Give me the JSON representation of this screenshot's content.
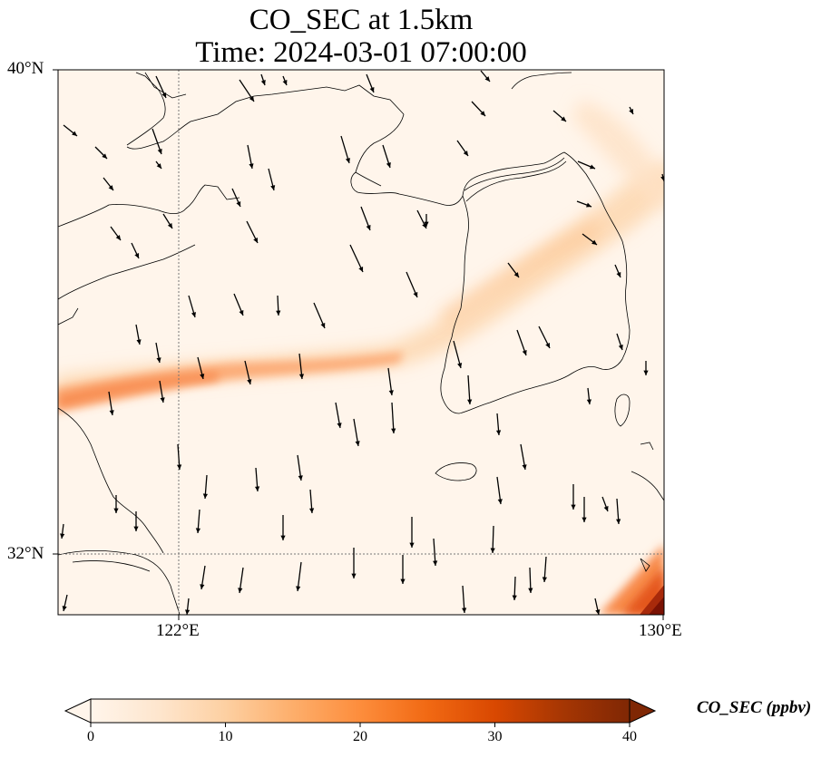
{
  "title": {
    "line1": "CO_SEC at 1.5km",
    "line2": "Time: 2024-03-01 07:00:00"
  },
  "map": {
    "extent": {
      "lon_min": 120,
      "lon_max": 130,
      "lat_min": 31,
      "lat_max": 40
    },
    "lat_ticks": [
      {
        "value": 40,
        "label": "40°N"
      },
      {
        "value": 32,
        "label": "32°N"
      }
    ],
    "lon_ticks": [
      {
        "value": 122,
        "label": "122°E"
      },
      {
        "value": 130,
        "label": "130°E"
      }
    ],
    "gridlines": [
      {
        "type": "lon",
        "value": 122
      },
      {
        "type": "lat",
        "value": 32
      }
    ],
    "plume_color_max": "#d94a1a",
    "coastline_color": "#000000"
  },
  "colorbar": {
    "label": "CO_SEC (ppbv)",
    "min": 0,
    "max": 40,
    "ticks": [
      "0",
      "10",
      "20",
      "30",
      "40"
    ],
    "colormap": [
      "#fff5eb",
      "#fee6ce",
      "#fdd0a2",
      "#fdae6b",
      "#fd8d3c",
      "#f16913",
      "#d94801",
      "#a63603",
      "#7f2704"
    ],
    "extend": "both"
  }
}
